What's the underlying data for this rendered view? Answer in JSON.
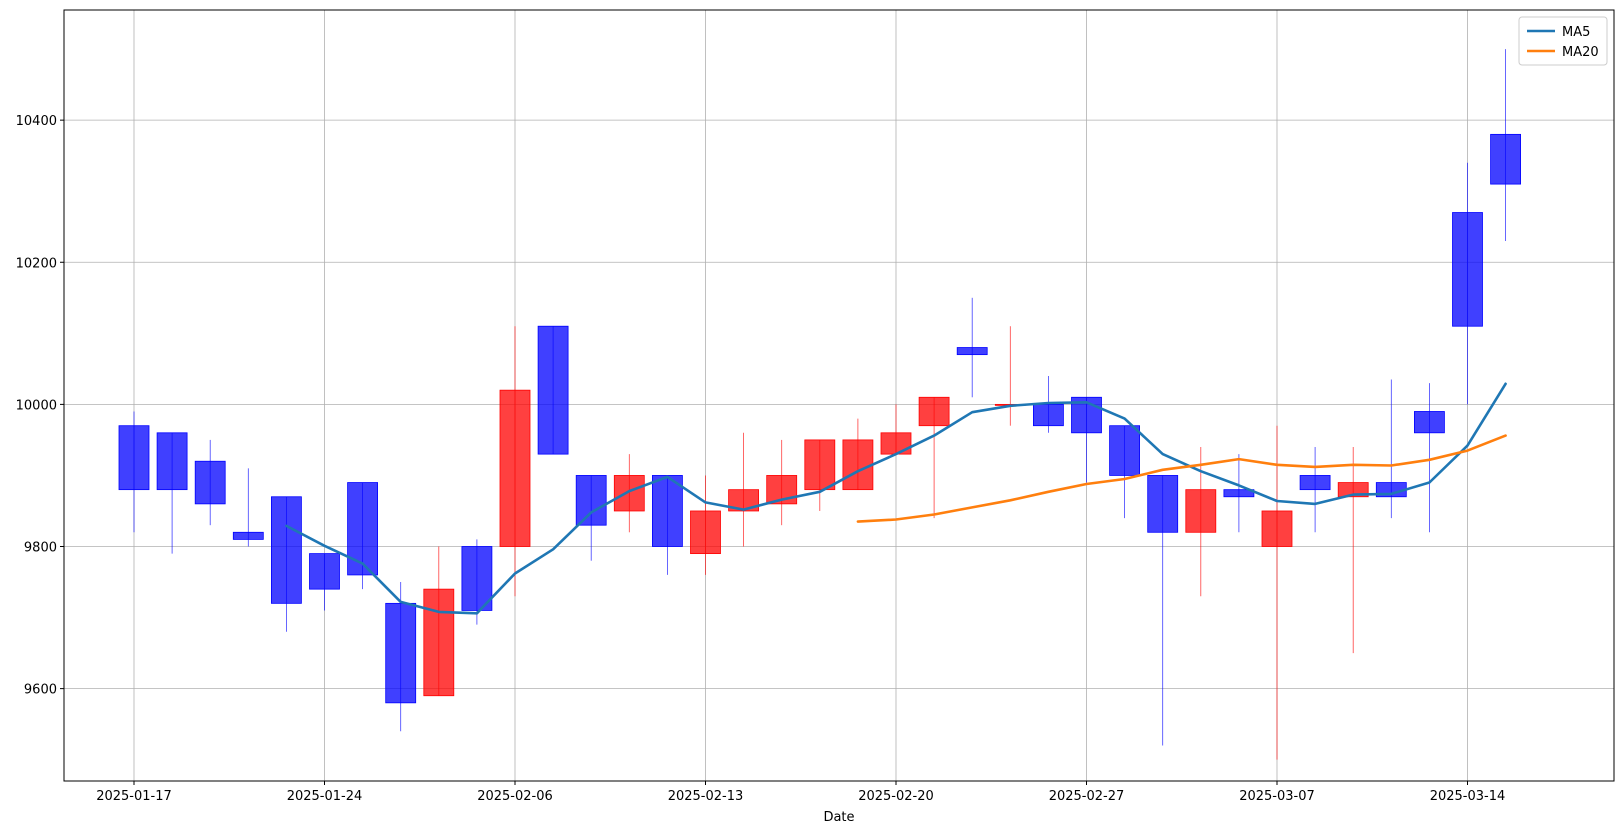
{
  "chart_data": {
    "type": "candlestick",
    "xlabel": "Date",
    "ylabel": "",
    "ylim": [
      9470,
      10555
    ],
    "grid": true,
    "legend_placement": "top-right",
    "x_ticks": [
      {
        "index": 0,
        "label": "2025-01-17"
      },
      {
        "index": 5,
        "label": "2025-01-24"
      },
      {
        "index": 10,
        "label": "2025-02-06"
      },
      {
        "index": 15,
        "label": "2025-02-13"
      },
      {
        "index": 20,
        "label": "2025-02-20"
      },
      {
        "index": 25,
        "label": "2025-02-27"
      },
      {
        "index": 30,
        "label": "2025-03-07"
      },
      {
        "index": 35,
        "label": "2025-03-14"
      }
    ],
    "y_ticks": [
      9600,
      9800,
      10000,
      10200,
      10400
    ],
    "up_color": "#ff0000",
    "down_color": "#0000ff",
    "candles": [
      {
        "o": 9970,
        "h": 9990,
        "l": 9820,
        "c": 9880
      },
      {
        "o": 9960,
        "h": 9960,
        "l": 9790,
        "c": 9880
      },
      {
        "o": 9920,
        "h": 9950,
        "l": 9830,
        "c": 9860
      },
      {
        "o": 9820,
        "h": 9910,
        "l": 9800,
        "c": 9810
      },
      {
        "o": 9870,
        "h": 9870,
        "l": 9680,
        "c": 9720
      },
      {
        "o": 9790,
        "h": 9790,
        "l": 9710,
        "c": 9740
      },
      {
        "o": 9890,
        "h": 9890,
        "l": 9740,
        "c": 9760
      },
      {
        "o": 9720,
        "h": 9750,
        "l": 9540,
        "c": 9580
      },
      {
        "o": 9590,
        "h": 9800,
        "l": 9590,
        "c": 9740
      },
      {
        "o": 9800,
        "h": 9810,
        "l": 9690,
        "c": 9710
      },
      {
        "o": 9800,
        "h": 10110,
        "l": 9730,
        "c": 10020
      },
      {
        "o": 10110,
        "h": 10110,
        "l": 9930,
        "c": 9930
      },
      {
        "o": 9900,
        "h": 9900,
        "l": 9780,
        "c": 9830
      },
      {
        "o": 9850,
        "h": 9930,
        "l": 9820,
        "c": 9900
      },
      {
        "o": 9900,
        "h": 9900,
        "l": 9760,
        "c": 9800
      },
      {
        "o": 9790,
        "h": 9900,
        "l": 9760,
        "c": 9850
      },
      {
        "o": 9850,
        "h": 9960,
        "l": 9800,
        "c": 9880
      },
      {
        "o": 9860,
        "h": 9950,
        "l": 9830,
        "c": 9900
      },
      {
        "o": 9880,
        "h": 9950,
        "l": 9850,
        "c": 9950
      },
      {
        "o": 9880,
        "h": 9980,
        "l": 9880,
        "c": 9950
      },
      {
        "o": 9930,
        "h": 10000,
        "l": 9930,
        "c": 9960
      },
      {
        "o": 9970,
        "h": 10010,
        "l": 9840,
        "c": 10010
      },
      {
        "o": 10080,
        "h": 10150,
        "l": 10010,
        "c": 10070
      },
      {
        "o": 10000,
        "h": 10110,
        "l": 9970,
        "c": 10000
      },
      {
        "o": 10000,
        "h": 10040,
        "l": 9960,
        "c": 9970
      },
      {
        "o": 10010,
        "h": 10010,
        "l": 9890,
        "c": 9960
      },
      {
        "o": 9970,
        "h": 9970,
        "l": 9840,
        "c": 9900
      },
      {
        "o": 9900,
        "h": 9900,
        "l": 9520,
        "c": 9820
      },
      {
        "o": 9820,
        "h": 9940,
        "l": 9730,
        "c": 9880
      },
      {
        "o": 9880,
        "h": 9930,
        "l": 9820,
        "c": 9870
      },
      {
        "o": 9800,
        "h": 9970,
        "l": 9500,
        "c": 9850
      },
      {
        "o": 9900,
        "h": 9940,
        "l": 9820,
        "c": 9880
      },
      {
        "o": 9870,
        "h": 9940,
        "l": 9650,
        "c": 9890
      },
      {
        "o": 9890,
        "h": 10035,
        "l": 9840,
        "c": 9870
      },
      {
        "o": 9990,
        "h": 10030,
        "l": 9820,
        "c": 9960
      },
      {
        "o": 10270,
        "h": 10340,
        "l": 10000,
        "c": 10110
      },
      {
        "o": 10380,
        "h": 10500,
        "l": 10230,
        "c": 10310
      }
    ],
    "series": [
      {
        "name": "MA5",
        "color": "#1f77b4",
        "start_index": 4,
        "values": [
          9829,
          9801,
          9776,
          9722,
          9708,
          9706,
          9762,
          9796,
          9848,
          9878,
          9898,
          9862,
          9852,
          9866,
          9877,
          9906,
          9930,
          9956,
          9989,
          9998,
          10002,
          10003,
          9980,
          9930,
          9906,
          9886,
          9864,
          9860,
          9873,
          9874,
          9890,
          9942,
          10029
        ]
      },
      {
        "name": "MA20",
        "color": "#ff7f0e",
        "start_index": 19,
        "values": [
          9835,
          9838,
          9845,
          9855,
          9865,
          9877,
          9888,
          9895,
          9908,
          9915,
          9923,
          9915,
          9912,
          9915,
          9914,
          9922,
          9935,
          9956
        ]
      }
    ]
  }
}
